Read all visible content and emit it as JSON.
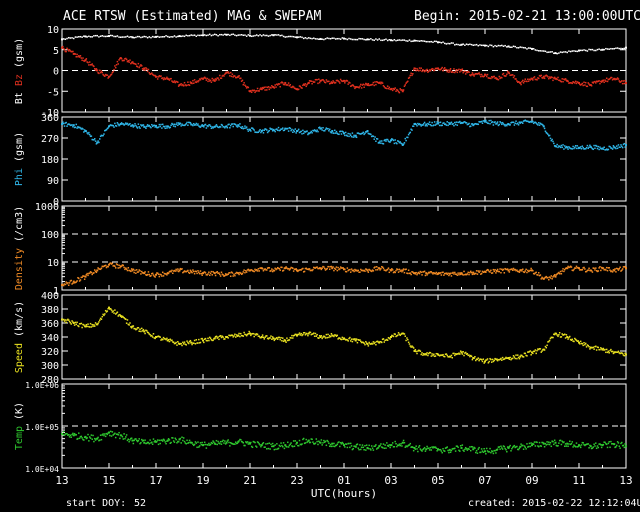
{
  "header": {
    "title": "ACE RTSW (Estimated) MAG & SWEPAM",
    "begin": "Begin: 2015-02-21 13:00:00UTC"
  },
  "footer": {
    "start_doy_label": "start DOY:",
    "start_doy_value": "52",
    "created": "created: 2015-02-22 12:12:04UTC"
  },
  "colors": {
    "background": "#000000",
    "axes": "#ffffff",
    "bt": "#ffffff",
    "bz": "#e0301e",
    "phi": "#2fb6e8",
    "density": "#f08a24",
    "speed": "#e8e020",
    "temp": "#2ec82e"
  },
  "chart_data": [
    {
      "type": "scatter",
      "panel": "mag",
      "ylabel_parts": [
        "Bt",
        "Bz",
        "(gsm)"
      ],
      "ylim": [
        -10,
        10
      ],
      "yticks": [
        -10,
        -5,
        0,
        5,
        10
      ],
      "ytick_labels": [
        "-10",
        "-5",
        "0",
        "5",
        "10"
      ],
      "dashed_lines": [
        0
      ],
      "series": [
        {
          "name": "Bt",
          "x": [
            0,
            1,
            2,
            3,
            4,
            5,
            6,
            7,
            8,
            9,
            10,
            11,
            12,
            13,
            14,
            15,
            16,
            17,
            18,
            19,
            20,
            21,
            22,
            23,
            24
          ],
          "y": [
            7.5,
            8.2,
            8.3,
            8.0,
            8.1,
            8.3,
            8.5,
            8.6,
            8.4,
            8.5,
            8.0,
            7.6,
            7.7,
            7.5,
            7.3,
            7.2,
            6.8,
            6.2,
            6.0,
            5.8,
            5.2,
            4.2,
            4.8,
            5.0,
            5.5
          ]
        },
        {
          "name": "Bz",
          "x": [
            0,
            0.5,
            1,
            1.5,
            2,
            2.5,
            3,
            3.5,
            4,
            4.5,
            5,
            5.5,
            6,
            6.5,
            7,
            7.5,
            8,
            8.5,
            9,
            9.5,
            10,
            10.5,
            11,
            11.5,
            12,
            12.5,
            13,
            13.5,
            14,
            14.5,
            15,
            15.5,
            16,
            16.5,
            17,
            17.5,
            18,
            18.5,
            19,
            19.5,
            20,
            20.5,
            21,
            21.5,
            22,
            22.5,
            23,
            23.5,
            24
          ],
          "y": [
            5.5,
            4.0,
            2.5,
            0.0,
            -1.5,
            3.0,
            2.0,
            0.5,
            -1.5,
            -2.0,
            -3.5,
            -3.0,
            -2.0,
            -2.5,
            -0.5,
            -1.5,
            -5.0,
            -4.5,
            -4.0,
            -3.0,
            -4.5,
            -3.0,
            -2.5,
            -3.0,
            -2.5,
            -4.0,
            -3.5,
            -3.0,
            -4.5,
            -5.0,
            0.5,
            0.0,
            0.5,
            0.0,
            0.0,
            -1.0,
            -1.0,
            -2.0,
            -0.5,
            -3.0,
            -2.0,
            -1.5,
            -2.0,
            -2.5,
            -3.0,
            -3.5,
            -2.5,
            -2.0,
            -3.0
          ]
        }
      ]
    },
    {
      "type": "scatter",
      "panel": "phi",
      "ylabel_parts": [
        "Phi",
        "(gsm)"
      ],
      "ylim": [
        0,
        360
      ],
      "yticks": [
        0,
        90,
        180,
        270,
        360
      ],
      "ytick_labels": [
        "0",
        "90",
        "180",
        "270",
        "360"
      ],
      "series": [
        {
          "name": "Phi",
          "x": [
            0,
            0.5,
            1,
            1.5,
            2,
            2.5,
            3,
            3.5,
            4,
            4.5,
            5,
            5.5,
            6,
            6.5,
            7,
            7.5,
            8,
            8.5,
            9,
            9.5,
            10,
            10.5,
            11,
            11.5,
            12,
            12.5,
            13,
            13.5,
            14,
            14.5,
            15,
            15.5,
            16,
            16.5,
            17,
            17.5,
            18,
            18.5,
            19,
            19.5,
            20,
            20.5,
            21,
            21.5,
            22,
            22.5,
            23,
            23.5,
            24
          ],
          "y": [
            330,
            325,
            300,
            250,
            320,
            330,
            325,
            318,
            322,
            320,
            330,
            328,
            322,
            318,
            320,
            325,
            305,
            300,
            305,
            310,
            300,
            290,
            310,
            300,
            290,
            280,
            300,
            250,
            260,
            240,
            330,
            328,
            332,
            330,
            335,
            325,
            340,
            332,
            330,
            335,
            340,
            320,
            235,
            230,
            228,
            232,
            225,
            230,
            240
          ]
        }
      ]
    },
    {
      "type": "scatter",
      "panel": "density",
      "ylabel_parts": [
        "Density",
        "(/cm3)"
      ],
      "ylim": [
        1,
        1000
      ],
      "log_scale": true,
      "yticks": [
        1,
        10,
        100,
        1000
      ],
      "ytick_labels": [
        "1",
        "10",
        "100",
        "1000"
      ],
      "dashed_lines": [
        10,
        100
      ],
      "series": [
        {
          "name": "Density",
          "x": [
            0,
            0.5,
            1,
            1.5,
            2,
            2.5,
            3,
            3.5,
            4,
            4.5,
            5,
            5.5,
            6,
            6.5,
            7,
            7.5,
            8,
            8.5,
            9,
            9.5,
            10,
            10.5,
            11,
            11.5,
            12,
            12.5,
            13,
            13.5,
            14,
            14.5,
            15,
            15.5,
            16,
            16.5,
            17,
            17.5,
            18,
            18.5,
            19,
            19.5,
            20,
            20.5,
            21,
            21.5,
            22,
            22.5,
            23,
            23.5,
            24
          ],
          "y": [
            1.5,
            2,
            3,
            5,
            8,
            7,
            5,
            4,
            3.5,
            4,
            5,
            4.5,
            4,
            4,
            3.5,
            4,
            5,
            6,
            5,
            6,
            5,
            5.5,
            6,
            6,
            5.5,
            5,
            5,
            6,
            5,
            5,
            4,
            4,
            3.8,
            3.8,
            4,
            4.2,
            4.5,
            4.8,
            5,
            5,
            5,
            2.5,
            3,
            6,
            6,
            5,
            6,
            5,
            6
          ]
        }
      ]
    },
    {
      "type": "scatter",
      "panel": "speed",
      "ylabel_parts": [
        "Speed",
        "(km/s)"
      ],
      "ylim": [
        280,
        400
      ],
      "yticks": [
        280,
        300,
        320,
        340,
        360,
        380,
        400
      ],
      "ytick_labels": [
        "280",
        "300",
        "320",
        "340",
        "360",
        "380",
        "400"
      ],
      "series": [
        {
          "name": "Speed",
          "x": [
            0,
            0.5,
            1,
            1.5,
            2,
            2.5,
            3,
            3.5,
            4,
            4.5,
            5,
            5.5,
            6,
            6.5,
            7,
            7.5,
            8,
            8.5,
            9,
            9.5,
            10,
            10.5,
            11,
            11.5,
            12,
            12.5,
            13,
            13.5,
            14,
            14.5,
            15,
            15.5,
            16,
            16.5,
            17,
            17.5,
            18,
            18.5,
            19,
            19.5,
            20,
            20.5,
            21,
            21.5,
            22,
            22.5,
            23,
            23.5,
            24
          ],
          "y": [
            365,
            360,
            355,
            358,
            382,
            370,
            355,
            348,
            340,
            335,
            330,
            332,
            335,
            338,
            340,
            342,
            345,
            340,
            338,
            335,
            342,
            345,
            340,
            342,
            338,
            335,
            330,
            332,
            340,
            345,
            320,
            315,
            315,
            312,
            318,
            310,
            305,
            308,
            310,
            312,
            318,
            322,
            345,
            340,
            332,
            325,
            322,
            318,
            315
          ]
        }
      ]
    },
    {
      "type": "scatter",
      "panel": "temp",
      "ylabel_parts": [
        "Temp",
        "(K)"
      ],
      "ylim": [
        10000,
        1000000
      ],
      "log_scale": true,
      "yticks": [
        10000,
        100000,
        1000000
      ],
      "ytick_labels": [
        "1.0E+04",
        "1.0E+05",
        "1.0E+06"
      ],
      "dashed_lines": [
        100000
      ],
      "series": [
        {
          "name": "Temp",
          "x": [
            0,
            0.5,
            1,
            1.5,
            2,
            2.5,
            3,
            3.5,
            4,
            4.5,
            5,
            5.5,
            6,
            6.5,
            7,
            7.5,
            8,
            8.5,
            9,
            9.5,
            10,
            10.5,
            11,
            11.5,
            12,
            12.5,
            13,
            13.5,
            14,
            14.5,
            15,
            15.5,
            16,
            16.5,
            17,
            17.5,
            18,
            18.5,
            19,
            19.5,
            20,
            20.5,
            21,
            21.5,
            22,
            22.5,
            23,
            23.5,
            24
          ],
          "y": [
            65000,
            60000,
            55000,
            50000,
            70000,
            60000,
            45000,
            40000,
            42000,
            45000,
            48000,
            40000,
            35000,
            38000,
            40000,
            42000,
            38000,
            35000,
            33000,
            35000,
            40000,
            45000,
            40000,
            38000,
            35000,
            32000,
            30000,
            33000,
            35000,
            40000,
            30000,
            28000,
            28000,
            27000,
            30000,
            28000,
            25000,
            27000,
            30000,
            32000,
            35000,
            38000,
            40000,
            38000,
            35000,
            33000,
            35000,
            37000,
            33000
          ]
        }
      ]
    }
  ],
  "x_axis": {
    "label": "UTC(hours)",
    "ticks": [
      0,
      2,
      4,
      6,
      8,
      10,
      12,
      14,
      16,
      18,
      20,
      22,
      24
    ],
    "tick_labels": [
      "13",
      "15",
      "17",
      "19",
      "21",
      "23",
      "01",
      "03",
      "05",
      "07",
      "09",
      "11",
      "13"
    ]
  }
}
